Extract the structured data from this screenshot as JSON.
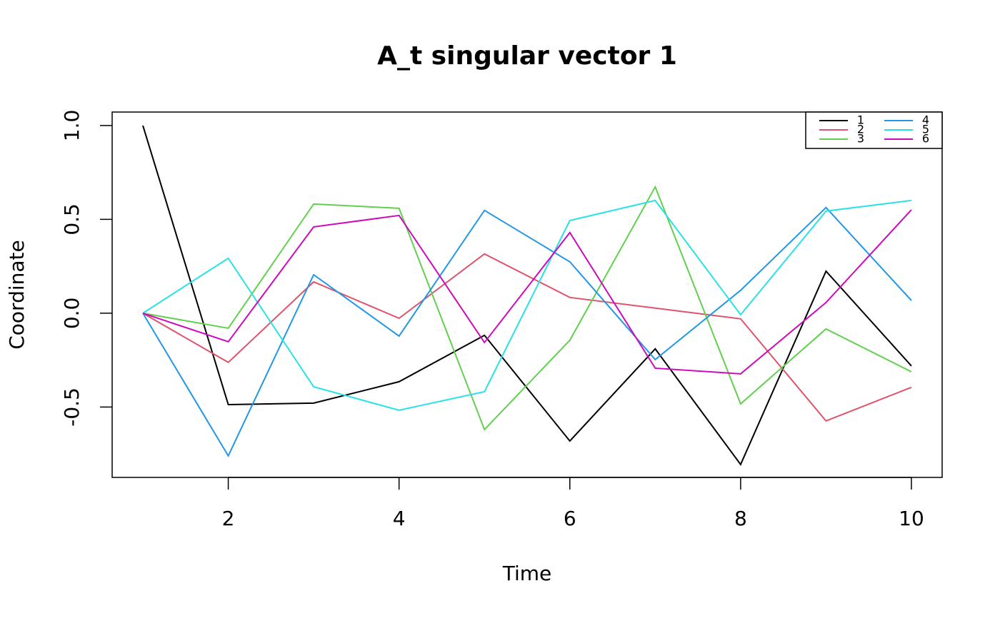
{
  "chart_data": {
    "type": "line",
    "title": "A_t singular vector 1",
    "x_label": "Time",
    "y_label": "Coordinate",
    "x": [
      1,
      2,
      3,
      4,
      5,
      6,
      7,
      8,
      9,
      10
    ],
    "xlim": [
      0.64,
      10.36
    ],
    "xticks": [
      2,
      4,
      6,
      8,
      10
    ],
    "ylim": [
      -0.875,
      1.072
    ],
    "yticks": [
      -0.5,
      {
        "value": 0,
        "label": "0.0"
      },
      0.5,
      {
        "value": 1,
        "label": "1.0"
      }
    ],
    "legend_position": "top-right",
    "legend_columns": 2,
    "series": [
      {
        "name": "1",
        "color": "#000000",
        "values": [
          1.0,
          -0.487,
          -0.479,
          -0.365,
          -0.118,
          -0.681,
          -0.19,
          -0.806,
          0.224,
          -0.281
        ]
      },
      {
        "name": "2",
        "color": "#DF536B",
        "values": [
          0,
          -0.262,
          0.167,
          -0.027,
          0.316,
          0.084,
          0.027,
          -0.03,
          -0.574,
          -0.395
        ]
      },
      {
        "name": "3",
        "color": "#61D04F",
        "values": [
          0,
          -0.08,
          0.582,
          0.559,
          -0.62,
          -0.144,
          0.673,
          -0.483,
          -0.084,
          -0.312
        ]
      },
      {
        "name": "4",
        "color": "#2297E6",
        "values": [
          0,
          -0.76,
          0.205,
          -0.122,
          0.548,
          0.274,
          -0.247,
          0.122,
          0.563,
          0.068
        ]
      },
      {
        "name": "5",
        "color": "#28E2E5",
        "values": [
          0,
          0.293,
          -0.392,
          -0.517,
          -0.418,
          0.494,
          0.601,
          -0.008,
          0.544,
          0.601
        ]
      },
      {
        "name": "6",
        "color": "#CD0BBC",
        "values": [
          0,
          -0.152,
          0.46,
          0.521,
          -0.156,
          0.43,
          -0.293,
          -0.323,
          0.057,
          0.551
        ]
      }
    ]
  }
}
